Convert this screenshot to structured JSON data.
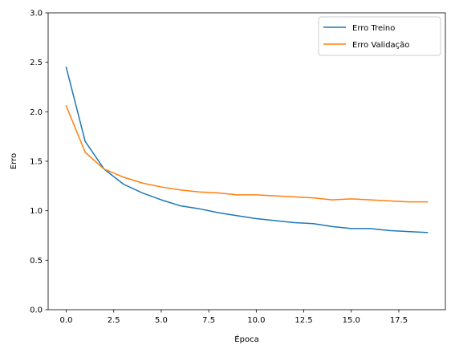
{
  "chart_data": {
    "type": "line",
    "title": "",
    "xlabel": "Época",
    "ylabel": "Erro",
    "xlim": [
      -0.95,
      19.95
    ],
    "ylim": [
      0,
      3
    ],
    "xticks": [
      0,
      2.5,
      5,
      7.5,
      10,
      12.5,
      15,
      17.5
    ],
    "xtick_labels": [
      "0.0",
      "2.5",
      "5.0",
      "7.5",
      "10.0",
      "12.5",
      "15.0",
      "17.5"
    ],
    "yticks": [
      0,
      0.5,
      1,
      1.5,
      2,
      2.5,
      3
    ],
    "ytick_labels": [
      "0.0",
      "0.5",
      "1.0",
      "1.5",
      "2.0",
      "2.5",
      "3.0"
    ],
    "grid": false,
    "legend_position": "top-right",
    "x": [
      0,
      1,
      2,
      3,
      4,
      5,
      6,
      7,
      8,
      9,
      10,
      11,
      12,
      13,
      14,
      15,
      16,
      17,
      18,
      19
    ],
    "series": [
      {
        "name": "Erro Treino",
        "color": "#1f77b4",
        "values": [
          2.45,
          1.7,
          1.42,
          1.27,
          1.18,
          1.11,
          1.05,
          1.02,
          0.98,
          0.95,
          0.92,
          0.9,
          0.88,
          0.87,
          0.84,
          0.82,
          0.82,
          0.8,
          0.79,
          0.78
        ]
      },
      {
        "name": "Erro Validação",
        "color": "#ff7f0e",
        "values": [
          2.06,
          1.59,
          1.42,
          1.34,
          1.28,
          1.24,
          1.21,
          1.19,
          1.18,
          1.16,
          1.16,
          1.15,
          1.14,
          1.13,
          1.11,
          1.12,
          1.11,
          1.1,
          1.09,
          1.09
        ]
      }
    ]
  }
}
